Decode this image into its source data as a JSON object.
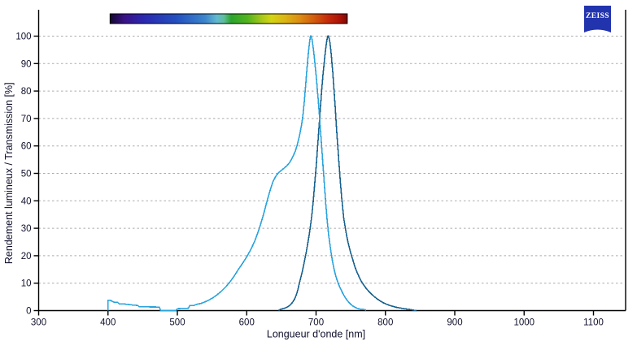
{
  "logo": {
    "text": "ZEISS",
    "color": "#2233ae"
  },
  "chart_data": {
    "type": "line",
    "title": "",
    "xlabel": "Longueur d'onde [nm]",
    "ylabel": "Rendement lumineux / Transmission [%]",
    "xlim": [
      300,
      1146
    ],
    "ylim": [
      0,
      100
    ],
    "x_ticks": [
      300,
      400,
      500,
      600,
      700,
      800,
      900,
      1000,
      1100
    ],
    "y_ticks": [
      0,
      10,
      20,
      30,
      40,
      50,
      60,
      70,
      80,
      90,
      100
    ],
    "grid": "horizontal-dashed",
    "legend": "none",
    "colors": {
      "grid": "#ababab",
      "axis": "#000000",
      "text": "#10102c"
    },
    "spectrum_bar": {
      "range_nm": [
        403,
        745
      ],
      "stops": [
        {
          "at": "0%",
          "color": "#140832"
        },
        {
          "at": "6%",
          "color": "#3a1286"
        },
        {
          "at": "14%",
          "color": "#2a28b0"
        },
        {
          "at": "28%",
          "color": "#2450c0"
        },
        {
          "at": "40%",
          "color": "#3c85cc"
        },
        {
          "at": "45%",
          "color": "#62b8d0"
        },
        {
          "at": "48%",
          "color": "#5fbe9a"
        },
        {
          "at": "51%",
          "color": "#2ca42c"
        },
        {
          "at": "58%",
          "color": "#52b41e"
        },
        {
          "at": "64%",
          "color": "#a8c81a"
        },
        {
          "at": "68%",
          "color": "#d4d414"
        },
        {
          "at": "74%",
          "color": "#dcb414"
        },
        {
          "at": "80%",
          "color": "#dc8c12"
        },
        {
          "at": "86%",
          "color": "#d25c0e"
        },
        {
          "at": "92%",
          "color": "#c42a0a"
        },
        {
          "at": "97%",
          "color": "#ab1206"
        },
        {
          "at": "100%",
          "color": "#7e0a04"
        }
      ]
    },
    "series": [
      {
        "name": "rendement-lumineux",
        "color": "#17618f",
        "points": [
          [
            646,
            0
          ],
          [
            648,
            0.4
          ],
          [
            652,
            0.7
          ],
          [
            656,
            1.0
          ],
          [
            660,
            1.5
          ],
          [
            663,
            2.1
          ],
          [
            666,
            3.0
          ],
          [
            669,
            4.2
          ],
          [
            672,
            6.0
          ],
          [
            674,
            7.8
          ],
          [
            676,
            10.0
          ],
          [
            678,
            12.0
          ],
          [
            680,
            14.0
          ],
          [
            682,
            16.5
          ],
          [
            684,
            19.0
          ],
          [
            686,
            21.5
          ],
          [
            688,
            24.5
          ],
          [
            690,
            27.5
          ],
          [
            692,
            31.0
          ],
          [
            694,
            35.0
          ],
          [
            696,
            40.0
          ],
          [
            697,
            43.0
          ],
          [
            698,
            46.0
          ],
          [
            699,
            49.0
          ],
          [
            700,
            52.0
          ],
          [
            701,
            55.5
          ],
          [
            702,
            59.0
          ],
          [
            703,
            62.5
          ],
          [
            704,
            66.0
          ],
          [
            705,
            69.5
          ],
          [
            706,
            73.0
          ],
          [
            707,
            76.5
          ],
          [
            708,
            80.0
          ],
          [
            709,
            83.0
          ],
          [
            710,
            86.0
          ],
          [
            711,
            88.5
          ],
          [
            712,
            91.0
          ],
          [
            713,
            93.5
          ],
          [
            714,
            95.5
          ],
          [
            715,
            97.5
          ],
          [
            716,
            99.0
          ],
          [
            717,
            100
          ],
          [
            718,
            100
          ],
          [
            719,
            99
          ],
          [
            720,
            97.5
          ],
          [
            721,
            95.5
          ],
          [
            722,
            93
          ],
          [
            723,
            90
          ],
          [
            724,
            87
          ],
          [
            725,
            83.5
          ],
          [
            726,
            80
          ],
          [
            727,
            76.5
          ],
          [
            728,
            72.5
          ],
          [
            729,
            68.5
          ],
          [
            730,
            64.5
          ],
          [
            731,
            61
          ],
          [
            732,
            57.5
          ],
          [
            733,
            54
          ],
          [
            734,
            50.5
          ],
          [
            735,
            47
          ],
          [
            736,
            44
          ],
          [
            737,
            41
          ],
          [
            738,
            38.5
          ],
          [
            739,
            36
          ],
          [
            740,
            33.5
          ],
          [
            742,
            30.5
          ],
          [
            744,
            27.5
          ],
          [
            746,
            25
          ],
          [
            748,
            23
          ],
          [
            750,
            21
          ],
          [
            753,
            18.5
          ],
          [
            756,
            16
          ],
          [
            759,
            14
          ],
          [
            762,
            12.3
          ],
          [
            765,
            10.8
          ],
          [
            768,
            9.6
          ],
          [
            772,
            8.2
          ],
          [
            776,
            7.0
          ],
          [
            780,
            6.0
          ],
          [
            784,
            5.1
          ],
          [
            788,
            4.3
          ],
          [
            792,
            3.6
          ],
          [
            796,
            3.0
          ],
          [
            800,
            2.5
          ],
          [
            805,
            2.0
          ],
          [
            810,
            1.6
          ],
          [
            815,
            1.25
          ],
          [
            820,
            1.0
          ],
          [
            825,
            0.8
          ],
          [
            830,
            0.6
          ],
          [
            835,
            0.45
          ],
          [
            838,
            0.3
          ],
          [
            841,
            0.15
          ],
          [
            845,
            0
          ]
        ]
      },
      {
        "name": "transmission",
        "color": "#29a3dc",
        "points": [
          [
            399.9,
            0
          ],
          [
            400,
            3.8
          ],
          [
            404,
            3.7
          ],
          [
            408,
            3.1
          ],
          [
            414,
            3.0
          ],
          [
            416,
            2.5
          ],
          [
            424,
            2.4
          ],
          [
            434,
            2.1
          ],
          [
            436,
            2.0
          ],
          [
            443,
            1.9
          ],
          [
            445,
            1.4
          ],
          [
            474,
            1.3
          ],
          [
            476,
            0
          ],
          [
            498,
            0
          ],
          [
            500,
            0.7
          ],
          [
            516,
            0.9
          ],
          [
            518,
            1.8
          ],
          [
            524,
            1.9
          ],
          [
            528,
            2.3
          ],
          [
            534,
            2.6
          ],
          [
            540,
            3.2
          ],
          [
            546,
            3.9
          ],
          [
            552,
            4.8
          ],
          [
            558,
            5.9
          ],
          [
            564,
            7.2
          ],
          [
            570,
            8.7
          ],
          [
            576,
            10.5
          ],
          [
            582,
            12.6
          ],
          [
            588,
            15.0
          ],
          [
            594,
            17.2
          ],
          [
            600,
            19.6
          ],
          [
            606,
            22.3
          ],
          [
            612,
            25.6
          ],
          [
            618,
            29.8
          ],
          [
            624,
            34.8
          ],
          [
            630,
            40.5
          ],
          [
            634,
            44.0
          ],
          [
            638,
            47.0
          ],
          [
            642,
            49.0
          ],
          [
            646,
            50.3
          ],
          [
            652,
            51.5
          ],
          [
            658,
            52.8
          ],
          [
            662,
            54.0
          ],
          [
            666,
            55.8
          ],
          [
            670,
            58.0
          ],
          [
            673,
            60.5
          ],
          [
            676,
            63.5
          ],
          [
            679,
            67.5
          ],
          [
            681,
            71.0
          ],
          [
            683,
            76.0
          ],
          [
            685,
            82.0
          ],
          [
            687,
            88.5
          ],
          [
            689,
            94.0
          ],
          [
            690,
            96.5
          ],
          [
            691,
            98.5
          ],
          [
            692,
            100
          ],
          [
            693,
            100
          ],
          [
            694,
            99
          ],
          [
            695,
            97.5
          ],
          [
            696,
            95.5
          ],
          [
            697,
            93.5
          ],
          [
            698,
            91
          ],
          [
            699,
            88.5
          ],
          [
            700,
            86
          ],
          [
            701,
            83
          ],
          [
            702,
            80
          ],
          [
            703,
            77
          ],
          [
            704,
            74
          ],
          [
            705,
            70.5
          ],
          [
            706,
            67
          ],
          [
            707,
            63.5
          ],
          [
            708,
            60
          ],
          [
            709,
            56.5
          ],
          [
            710,
            53
          ],
          [
            711,
            49.5
          ],
          [
            712,
            46
          ],
          [
            713,
            42.5
          ],
          [
            714,
            39
          ],
          [
            715,
            36
          ],
          [
            716,
            33
          ],
          [
            717,
            30.5
          ],
          [
            718,
            28
          ],
          [
            719,
            26
          ],
          [
            720,
            24
          ],
          [
            722,
            20.5
          ],
          [
            724,
            17.5
          ],
          [
            726,
            15
          ],
          [
            728,
            13
          ],
          [
            730,
            11.3
          ],
          [
            733,
            9.3
          ],
          [
            736,
            7.6
          ],
          [
            739,
            6.1
          ],
          [
            742,
            4.8
          ],
          [
            745,
            3.7
          ],
          [
            748,
            2.8
          ],
          [
            751,
            2.1
          ],
          [
            754,
            1.5
          ],
          [
            757,
            1.1
          ],
          [
            760,
            0.8
          ],
          [
            763,
            0.6
          ],
          [
            766,
            0.5
          ],
          [
            769,
            0.4
          ],
          [
            771,
            0.3
          ],
          [
            772,
            0
          ]
        ]
      }
    ]
  }
}
